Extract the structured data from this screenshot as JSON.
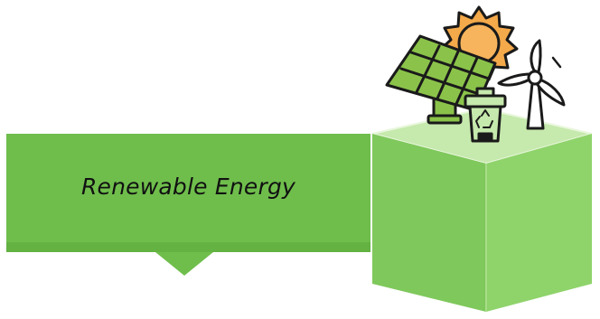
{
  "banner": {
    "label": "Renewable Energy"
  },
  "illustration": {
    "items": [
      "sun-icon",
      "solar-panel-icon",
      "recycle-bin-icon",
      "wind-turbine-icon"
    ]
  },
  "colors": {
    "banner": "#6fbe4c",
    "banner_shadow": "#5aa83a",
    "cube_top": "#c6e9ad",
    "cube_front": "#7fc85c",
    "cube_side": "#8fd36b",
    "panel": "#8bc34a",
    "sun": "#f4a94a",
    "outline": "#1a1a1a"
  }
}
